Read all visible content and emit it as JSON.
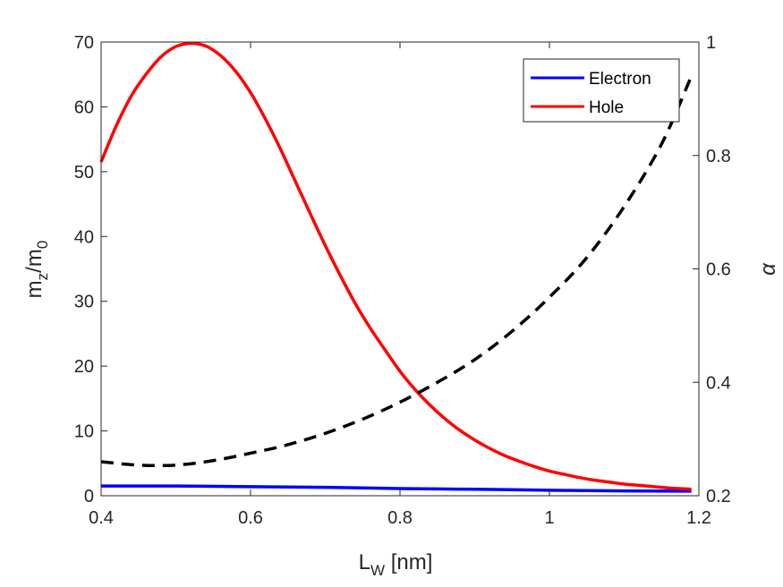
{
  "chart_data": {
    "type": "line",
    "title": "",
    "xlabel": {
      "main": "L",
      "sub": "W",
      "rest": " [nm]"
    },
    "ylabel_left": {
      "m1": "m",
      "sub1": "z",
      "slash": "/m",
      "sub2": "0"
    },
    "ylabel_right": "α",
    "xlim": [
      0.4,
      1.2
    ],
    "ylim_left": [
      0,
      70
    ],
    "ylim_right": [
      0.2,
      1.0
    ],
    "x_ticks": [
      0.4,
      0.6,
      0.8,
      1.0,
      1.2
    ],
    "x_tick_labels": [
      "0.4",
      "0.6",
      "0.8",
      "1",
      "1.2"
    ],
    "y_left_ticks": [
      0,
      10,
      20,
      30,
      40,
      50,
      60,
      70
    ],
    "y_left_tick_labels": [
      "0",
      "10",
      "20",
      "30",
      "40",
      "50",
      "60",
      "70"
    ],
    "y_right_ticks": [
      0.2,
      0.4,
      0.6,
      0.8,
      1.0
    ],
    "y_right_tick_labels": [
      "0.2",
      "0.4",
      "0.6",
      "0.8",
      "1"
    ],
    "grid": false,
    "legend_position": "top-right",
    "series": [
      {
        "name": "Electron",
        "axis": "left",
        "color": "#0000ff",
        "style": "solid",
        "x": [
          0.4,
          0.5,
          0.6,
          0.7,
          0.8,
          0.9,
          1.0,
          1.1,
          1.19
        ],
        "y": [
          1.5,
          1.5,
          1.4,
          1.3,
          1.1,
          1.0,
          0.85,
          0.75,
          0.7
        ]
      },
      {
        "name": "Hole",
        "axis": "left",
        "color": "#ff0000",
        "style": "solid",
        "x": [
          0.4,
          0.42,
          0.44,
          0.46,
          0.48,
          0.5,
          0.52,
          0.54,
          0.56,
          0.58,
          0.6,
          0.62,
          0.64,
          0.66,
          0.68,
          0.7,
          0.72,
          0.74,
          0.76,
          0.78,
          0.8,
          0.82,
          0.84,
          0.86,
          0.88,
          0.9,
          0.92,
          0.94,
          0.96,
          0.98,
          1.0,
          1.02,
          1.04,
          1.06,
          1.08,
          1.1,
          1.12,
          1.14,
          1.16,
          1.19
        ],
        "y": [
          51.5,
          57.0,
          61.6,
          65.0,
          67.7,
          69.3,
          69.8,
          69.4,
          67.9,
          65.5,
          62.2,
          58.1,
          53.5,
          48.5,
          43.5,
          38.6,
          34.0,
          29.7,
          25.9,
          22.5,
          19.2,
          16.4,
          14.0,
          11.9,
          10.1,
          8.6,
          7.3,
          6.2,
          5.3,
          4.5,
          3.8,
          3.3,
          2.8,
          2.4,
          2.1,
          1.8,
          1.6,
          1.4,
          1.2,
          1.0
        ]
      },
      {
        "name": "",
        "axis": "right",
        "color": "#000000",
        "style": "dashed",
        "x": [
          0.4,
          0.45,
          0.5,
          0.55,
          0.6,
          0.65,
          0.7,
          0.75,
          0.8,
          0.85,
          0.9,
          0.95,
          1.0,
          1.05,
          1.1,
          1.15,
          1.19
        ],
        "y": [
          0.26,
          0.254,
          0.254,
          0.262,
          0.275,
          0.29,
          0.31,
          0.335,
          0.365,
          0.4,
          0.44,
          0.49,
          0.55,
          0.62,
          0.71,
          0.82,
          0.94
        ]
      }
    ]
  }
}
